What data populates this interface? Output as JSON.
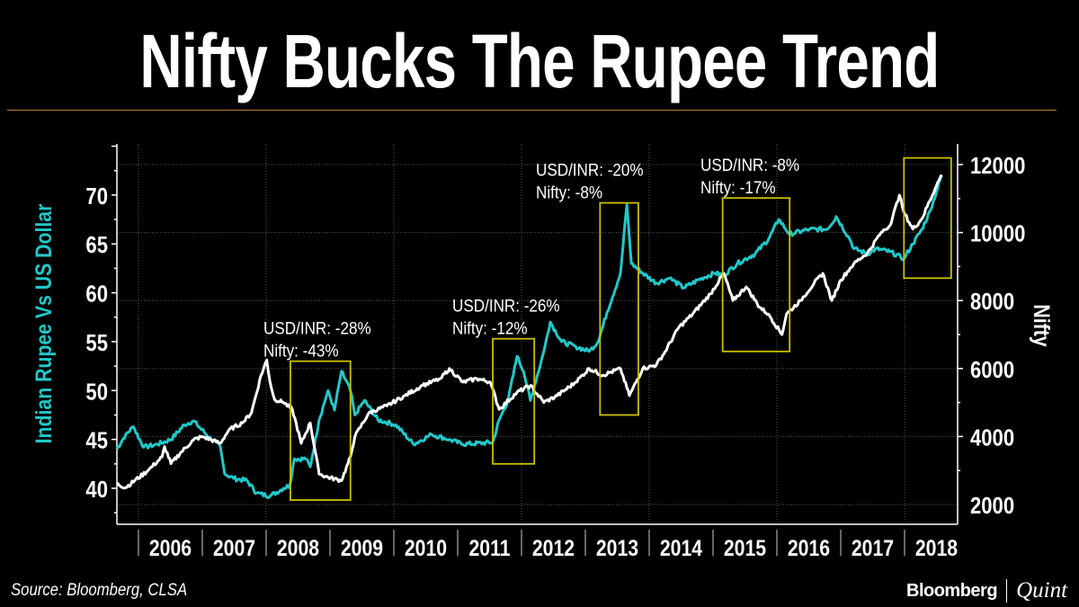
{
  "title": "Nifty Bucks The Rupee Trend",
  "source": "Source: Bloomberg, CLSA",
  "logo": {
    "brand": "Bloomberg",
    "partner": "Quint"
  },
  "colors": {
    "rupee": "#22c8c8",
    "nifty": "#ffffff",
    "box": "#c8c000",
    "rule": "#c87a2a"
  },
  "chart_data": {
    "type": "line",
    "title": "Nifty Bucks The Rupee Trend",
    "xlabel": "",
    "ylabel_left": "Indian Rupee Vs US Dollar",
    "ylabel_right": "Nifty",
    "ylim_left": [
      35,
      75
    ],
    "ylim_right": [
      1500,
      12500
    ],
    "xlim": [
      2005.66,
      2018.83
    ],
    "x_ticks": [
      "2006",
      "2007",
      "2008",
      "2009",
      "2010",
      "2011",
      "2012",
      "2013",
      "2014",
      "2015",
      "2016",
      "2017",
      "2018"
    ],
    "y_ticks_left": [
      40,
      45,
      50,
      55,
      60,
      65,
      70
    ],
    "y_ticks_right": [
      2000,
      4000,
      6000,
      8000,
      10000,
      12000
    ],
    "grid": true,
    "series": [
      {
        "name": "USD/INR",
        "axis": "left",
        "x": [
          2005.66,
          2005.8,
          2005.92,
          2006.08,
          2006.3,
          2006.51,
          2006.72,
          2006.86,
          2007.14,
          2007.28,
          2007.35,
          2007.49,
          2007.7,
          2007.85,
          2008.06,
          2008.27,
          2008.37,
          2008.44,
          2008.62,
          2008.69,
          2008.83,
          2008.97,
          2009.07,
          2009.18,
          2009.32,
          2009.39,
          2009.54,
          2009.75,
          2010.03,
          2010.31,
          2010.59,
          2010.87,
          2011.08,
          2011.55,
          2011.65,
          2011.79,
          2011.93,
          2012.03,
          2012.14,
          2012.35,
          2012.45,
          2012.63,
          2012.85,
          2013.06,
          2013.2,
          2013.34,
          2013.55,
          2013.65,
          2013.72,
          2013.9,
          2014.11,
          2014.32,
          2014.54,
          2014.82,
          2015.03,
          2015.17,
          2015.38,
          2015.66,
          2015.87,
          2016.03,
          2016.2,
          2016.51,
          2016.79,
          2016.93,
          2017.14,
          2017.21,
          2017.42,
          2017.56,
          2017.77,
          2017.99,
          2018.13,
          2018.27,
          2018.41,
          2018.58
        ],
        "values": [
          44,
          45.5,
          46.3,
          44.2,
          44.5,
          45,
          46.5,
          46.9,
          45,
          44.3,
          41.5,
          41,
          40.8,
          39.5,
          39.2,
          40,
          40.3,
          43,
          43,
          42.2,
          47,
          50,
          48,
          52,
          50,
          47.5,
          49,
          47,
          46.5,
          44.5,
          45.5,
          45,
          44.5,
          44.7,
          47,
          49,
          53.5,
          52,
          49,
          54,
          57,
          55,
          54.5,
          54,
          55,
          58,
          62,
          69,
          63,
          62,
          61,
          61.5,
          60.5,
          61.5,
          62,
          61.8,
          63,
          64,
          65.5,
          67.5,
          66,
          66.5,
          66.5,
          67.8,
          65.5,
          64.5,
          64,
          64.5,
          64.2,
          63.5,
          65,
          66.5,
          68.5,
          72
        ]
      },
      {
        "name": "Nifty",
        "axis": "right",
        "x": [
          2005.66,
          2005.8,
          2005.94,
          2006.15,
          2006.37,
          2006.41,
          2006.51,
          2006.65,
          2006.86,
          2007.0,
          2007.14,
          2007.28,
          2007.42,
          2007.63,
          2007.77,
          2007.92,
          2008.01,
          2008.06,
          2008.13,
          2008.27,
          2008.41,
          2008.55,
          2008.69,
          2008.83,
          2008.97,
          2009.18,
          2009.32,
          2009.39,
          2009.61,
          2009.89,
          2010.17,
          2010.45,
          2010.73,
          2010.87,
          2011.08,
          2011.3,
          2011.51,
          2011.65,
          2011.93,
          2012.14,
          2012.35,
          2012.56,
          2012.85,
          2013.06,
          2013.27,
          2013.55,
          2013.69,
          2013.9,
          2014.11,
          2014.25,
          2014.46,
          2014.68,
          2014.96,
          2015.17,
          2015.31,
          2015.52,
          2015.73,
          2015.87,
          2016.08,
          2016.15,
          2016.37,
          2016.58,
          2016.72,
          2016.86,
          2017.0,
          2017.21,
          2017.42,
          2017.63,
          2017.77,
          2017.92,
          2017.99,
          2018.13,
          2018.27,
          2018.48,
          2018.58
        ],
        "values": [
          2600,
          2500,
          2700,
          3000,
          3400,
          3700,
          3200,
          3500,
          3900,
          4000,
          3900,
          3800,
          4200,
          4400,
          4700,
          5800,
          6250,
          5600,
          5100,
          5000,
          4800,
          3800,
          4400,
          2900,
          2800,
          2700,
          3400,
          4000,
          4700,
          4900,
          5200,
          5500,
          5700,
          6000,
          5600,
          5700,
          5600,
          4800,
          5300,
          5500,
          5000,
          5200,
          5600,
          6000,
          5800,
          6000,
          5200,
          6000,
          6100,
          6500,
          7200,
          7600,
          8200,
          8800,
          8000,
          8400,
          7800,
          7600,
          7000,
          7600,
          8000,
          8500,
          8800,
          8000,
          8600,
          9100,
          9400,
          10000,
          10200,
          11100,
          10600,
          10100,
          10400,
          11300,
          11700
        ]
      }
    ],
    "annotations": [
      {
        "line1": "USD/INR: -28%",
        "line2": "Nifty: -43%",
        "x_range": [
          2008.38,
          2009.32
        ],
        "y_range_left": [
          38.8,
          53
        ]
      },
      {
        "line1": "USD/INR: -26%",
        "line2": "Nifty: -12%",
        "x_range": [
          2011.55,
          2012.2
        ],
        "y_range_left": [
          42.5,
          55.3
        ]
      },
      {
        "line1": "USD/INR: -20%",
        "line2": "Nifty: -8%",
        "x_range": [
          2013.23,
          2013.83
        ],
        "y_range_left": [
          47.5,
          69.2
        ]
      },
      {
        "line1": "USD/INR: -8%",
        "line2": "Nifty: -17%",
        "x_range": [
          2015.15,
          2016.2
        ],
        "y_range_left": [
          54,
          69.7
        ]
      },
      {
        "line1": "",
        "line2": "",
        "x_range": [
          2017.99,
          2018.73
        ],
        "y_range_left": [
          61.5,
          73.8
        ]
      }
    ]
  }
}
